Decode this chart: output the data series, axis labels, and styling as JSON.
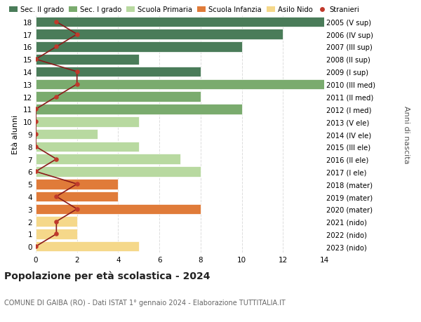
{
  "ages": [
    18,
    17,
    16,
    15,
    14,
    13,
    12,
    11,
    10,
    9,
    8,
    7,
    6,
    5,
    4,
    3,
    2,
    1,
    0
  ],
  "years": [
    "2005 (V sup)",
    "2006 (IV sup)",
    "2007 (III sup)",
    "2008 (II sup)",
    "2009 (I sup)",
    "2010 (III med)",
    "2011 (II med)",
    "2012 (I med)",
    "2013 (V ele)",
    "2014 (IV ele)",
    "2015 (III ele)",
    "2016 (II ele)",
    "2017 (I ele)",
    "2018 (mater)",
    "2019 (mater)",
    "2020 (mater)",
    "2021 (nido)",
    "2022 (nido)",
    "2023 (nido)"
  ],
  "bar_values": [
    14,
    12,
    10,
    5,
    8,
    14,
    8,
    10,
    5,
    3,
    5,
    7,
    8,
    4,
    4,
    8,
    2,
    2,
    5
  ],
  "bar_colors": [
    "#4a7c59",
    "#4a7c59",
    "#4a7c59",
    "#4a7c59",
    "#4a7c59",
    "#7aab6e",
    "#7aab6e",
    "#7aab6e",
    "#b8d9a0",
    "#b8d9a0",
    "#b8d9a0",
    "#b8d9a0",
    "#b8d9a0",
    "#e07b39",
    "#e07b39",
    "#e07b39",
    "#f5d88a",
    "#f5d88a",
    "#f5d88a"
  ],
  "stranieri": [
    1,
    2,
    1,
    0,
    2,
    2,
    1,
    0,
    0,
    0,
    0,
    1,
    0,
    2,
    1,
    2,
    1,
    1,
    0
  ],
  "legend_labels": [
    "Sec. II grado",
    "Sec. I grado",
    "Scuola Primaria",
    "Scuola Infanzia",
    "Asilo Nido",
    "Stranieri"
  ],
  "legend_colors": [
    "#4a7c59",
    "#7aab6e",
    "#b8d9a0",
    "#e07b39",
    "#f5d88a",
    "#c0392b"
  ],
  "title": "Popolazione per età scolastica - 2024",
  "subtitle": "COMUNE DI GAIBA (RO) - Dati ISTAT 1° gennaio 2024 - Elaborazione TUTTITALIA.IT",
  "ylabel_left": "Età alunni",
  "ylabel_right": "Anni di nascita",
  "xlim": [
    0,
    14
  ],
  "xticks": [
    0,
    2,
    4,
    6,
    8,
    10,
    12,
    14
  ],
  "background_color": "#ffffff",
  "grid_color": "#dddddd",
  "stranieri_color": "#c0392b",
  "stranieri_line_color": "#8b1a1a"
}
